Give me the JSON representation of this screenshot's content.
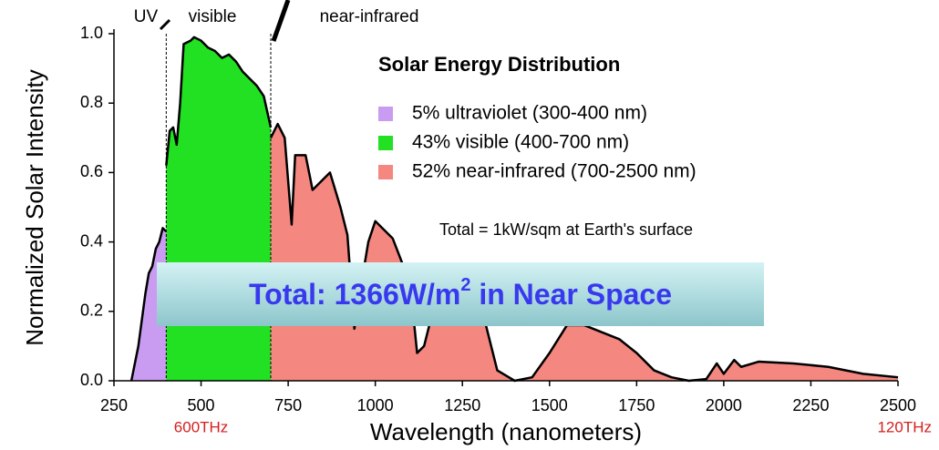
{
  "chart_data": {
    "type": "area",
    "title": "Solar Energy Distribution",
    "xlabel": "Wavelength (nanometers)",
    "ylabel": "Normalized Solar Intensity",
    "note": "Total = 1kW/sqm at Earth's surface",
    "banner": [
      "Total: 1366W/m",
      "2",
      " in Near Space"
    ],
    "region_labels": [
      "UV",
      "visible",
      "near-infrared"
    ],
    "dividers": [
      400,
      700
    ],
    "frequency_labels": [
      {
        "value": 500,
        "label": "600THz"
      },
      {
        "value": 2500,
        "label": "120THz"
      }
    ],
    "xlim": [
      250,
      2500
    ],
    "xticks": [
      250,
      500,
      750,
      1000,
      1250,
      1500,
      1750,
      2000,
      2250,
      2500
    ],
    "ylim": [
      0,
      1
    ],
    "yticks": [
      {
        "value": 0,
        "label": "0.0"
      },
      0.2,
      0.4,
      0.6,
      0.8,
      {
        "value": 1,
        "label": "1.0"
      }
    ],
    "grid": false,
    "series": [
      {
        "name": "5% ultraviolet (300-400 nm)",
        "color": "#c99cf2",
        "x": [
          300,
          320,
          340,
          350,
          360,
          370,
          380,
          390,
          400
        ],
        "values": [
          0,
          0.1,
          0.25,
          0.31,
          0.33,
          0.38,
          0.4,
          0.44,
          0.43
        ]
      },
      {
        "name": "43% visible (400-700 nm)",
        "color": "#22e022",
        "x": [
          400,
          410,
          420,
          430,
          440,
          450,
          470,
          480,
          500,
          520,
          540,
          560,
          580,
          600,
          620,
          640,
          660,
          680,
          700
        ],
        "values": [
          0.62,
          0.72,
          0.73,
          0.68,
          0.8,
          0.97,
          0.98,
          0.99,
          0.98,
          0.96,
          0.95,
          0.93,
          0.94,
          0.92,
          0.89,
          0.87,
          0.85,
          0.82,
          0.73
        ]
      },
      {
        "name": "52% near-infrared (700-2500 nm)",
        "color": "#f4877f",
        "x": [
          700,
          720,
          740,
          760,
          770,
          800,
          820,
          850,
          870,
          900,
          920,
          940,
          960,
          980,
          1000,
          1050,
          1100,
          1120,
          1140,
          1160,
          1200,
          1250,
          1300,
          1350,
          1400,
          1450,
          1500,
          1550,
          1600,
          1650,
          1700,
          1750,
          1800,
          1850,
          1900,
          1950,
          1980,
          2000,
          2030,
          2050,
          2100,
          2200,
          2300,
          2400,
          2500
        ],
        "values": [
          0.7,
          0.74,
          0.7,
          0.45,
          0.65,
          0.65,
          0.55,
          0.58,
          0.6,
          0.5,
          0.42,
          0.15,
          0.28,
          0.4,
          0.46,
          0.41,
          0.28,
          0.08,
          0.1,
          0.18,
          0.25,
          0.27,
          0.23,
          0.03,
          0,
          0.01,
          0.08,
          0.16,
          0.16,
          0.14,
          0.12,
          0.08,
          0.03,
          0.01,
          0,
          0.005,
          0.05,
          0.02,
          0.06,
          0.04,
          0.055,
          0.05,
          0.04,
          0.02,
          0.01
        ]
      }
    ]
  }
}
